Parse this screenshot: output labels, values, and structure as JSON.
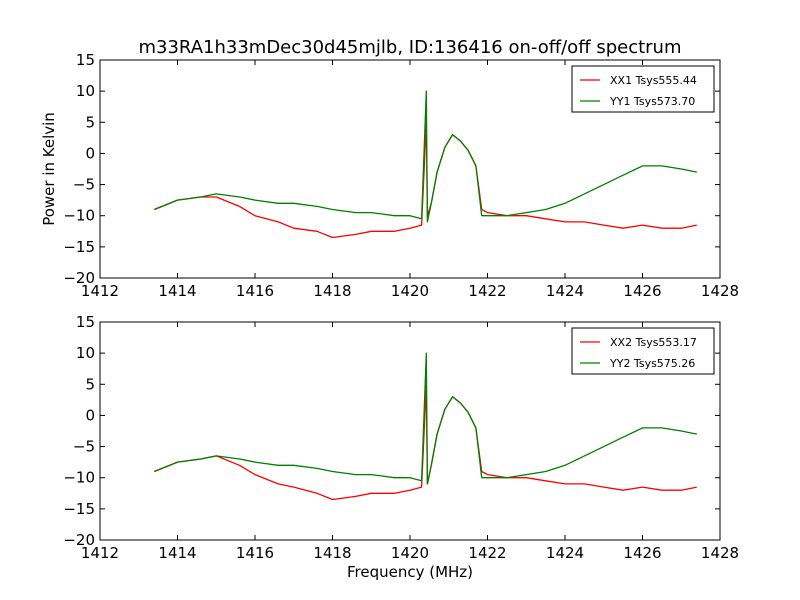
{
  "figure": {
    "title": "m33RA1h33mDec30d45mjlb, ID:136416 on-off/off spectrum",
    "ylabel": "Power in Kelvin",
    "xlabel": "Frequency (MHz)"
  },
  "chart_data": [
    {
      "type": "line",
      "title": "m33RA1h33mDec30d45mjlb, ID:136416 on-off/off spectrum",
      "xlabel": "",
      "ylabel": "Power in Kelvin",
      "xlim": [
        1412,
        1428
      ],
      "ylim": [
        -20,
        15
      ],
      "xticks": [
        "1412",
        "1414",
        "1416",
        "1418",
        "1420",
        "1422",
        "1424",
        "1426",
        "1428"
      ],
      "yticks": [
        "15",
        "10",
        "5",
        "0",
        "−5",
        "−10",
        "−15",
        "−20"
      ],
      "grid": false,
      "legend": "top-right",
      "series": [
        {
          "name": "XX1 Tsys555.44",
          "color": "#ff0000",
          "x": [
            1413.4,
            1414.0,
            1414.6,
            1415.0,
            1415.6,
            1416.0,
            1416.6,
            1417.0,
            1417.6,
            1418.0,
            1418.6,
            1419.0,
            1419.6,
            1420.0,
            1420.3,
            1420.42,
            1420.45,
            1420.55,
            1420.7,
            1420.9,
            1421.1,
            1421.3,
            1421.5,
            1421.7,
            1421.85,
            1422.0,
            1422.5,
            1423.0,
            1423.5,
            1424.0,
            1424.5,
            1425.0,
            1425.5,
            1426.0,
            1426.5,
            1427.0,
            1427.4
          ],
          "y": [
            -9,
            -7.5,
            -7,
            -7,
            -8.5,
            -10,
            -11,
            -12,
            -12.5,
            -13.5,
            -13,
            -12.5,
            -12.5,
            -12,
            -11.5,
            5,
            -10,
            -8,
            -3,
            1,
            3,
            2,
            0.5,
            -2,
            -9,
            -9.5,
            -10,
            -10,
            -10.5,
            -11,
            -11,
            -11.5,
            -12,
            -11.5,
            -12,
            -12,
            -11.5
          ]
        },
        {
          "name": "YY1 Tsys573.70",
          "color": "#008000",
          "x": [
            1413.4,
            1414.0,
            1414.6,
            1415.0,
            1415.6,
            1416.0,
            1416.6,
            1417.0,
            1417.6,
            1418.0,
            1418.6,
            1419.0,
            1419.6,
            1420.0,
            1420.3,
            1420.42,
            1420.45,
            1420.55,
            1420.7,
            1420.9,
            1421.1,
            1421.3,
            1421.5,
            1421.7,
            1421.85,
            1422.0,
            1422.5,
            1423.0,
            1423.5,
            1424.0,
            1424.5,
            1425.0,
            1425.5,
            1426.0,
            1426.5,
            1427.0,
            1427.4
          ],
          "y": [
            -9,
            -7.5,
            -7,
            -6.5,
            -7,
            -7.5,
            -8,
            -8,
            -8.5,
            -9,
            -9.5,
            -9.5,
            -10,
            -10,
            -10.5,
            10,
            -11,
            -8,
            -3,
            1,
            3,
            2,
            0.5,
            -2,
            -10,
            -10,
            -10,
            -9.5,
            -9,
            -8,
            -6.5,
            -5,
            -3.5,
            -2,
            -2,
            -2.5,
            -3
          ]
        }
      ]
    },
    {
      "type": "line",
      "title": "",
      "xlabel": "Frequency (MHz)",
      "ylabel": "",
      "xlim": [
        1412,
        1428
      ],
      "ylim": [
        -20,
        15
      ],
      "xticks": [
        "1412",
        "1414",
        "1416",
        "1418",
        "1420",
        "1422",
        "1424",
        "1426",
        "1428"
      ],
      "yticks": [
        "15",
        "10",
        "5",
        "0",
        "−5",
        "−10",
        "−15",
        "−20"
      ],
      "grid": false,
      "legend": "top-right",
      "series": [
        {
          "name": "XX2 Tsys553.17",
          "color": "#ff0000",
          "x": [
            1413.4,
            1414.0,
            1414.6,
            1415.0,
            1415.6,
            1416.0,
            1416.6,
            1417.0,
            1417.6,
            1418.0,
            1418.6,
            1419.0,
            1419.6,
            1420.0,
            1420.3,
            1420.42,
            1420.45,
            1420.55,
            1420.7,
            1420.9,
            1421.1,
            1421.3,
            1421.5,
            1421.7,
            1421.85,
            1422.0,
            1422.5,
            1423.0,
            1423.5,
            1424.0,
            1424.5,
            1425.0,
            1425.5,
            1426.0,
            1426.5,
            1427.0,
            1427.4
          ],
          "y": [
            -9,
            -7.5,
            -7,
            -6.5,
            -8,
            -9.5,
            -11,
            -11.5,
            -12.5,
            -13.5,
            -13,
            -12.5,
            -12.5,
            -12,
            -11.5,
            5,
            -11,
            -8,
            -3,
            1,
            3,
            2,
            0.5,
            -2,
            -9,
            -9.5,
            -10,
            -10,
            -10.5,
            -11,
            -11,
            -11.5,
            -12,
            -11.5,
            -12,
            -12,
            -11.5
          ]
        },
        {
          "name": "YY2 Tsys575.26",
          "color": "#008000",
          "x": [
            1413.4,
            1414.0,
            1414.6,
            1415.0,
            1415.6,
            1416.0,
            1416.6,
            1417.0,
            1417.6,
            1418.0,
            1418.6,
            1419.0,
            1419.6,
            1420.0,
            1420.3,
            1420.42,
            1420.45,
            1420.55,
            1420.7,
            1420.9,
            1421.1,
            1421.3,
            1421.5,
            1421.7,
            1421.85,
            1422.0,
            1422.5,
            1423.0,
            1423.5,
            1424.0,
            1424.5,
            1425.0,
            1425.5,
            1426.0,
            1426.5,
            1427.0,
            1427.4
          ],
          "y": [
            -9,
            -7.5,
            -7,
            -6.5,
            -7,
            -7.5,
            -8,
            -8,
            -8.5,
            -9,
            -9.5,
            -9.5,
            -10,
            -10,
            -10.5,
            10,
            -11,
            -8,
            -3,
            1,
            3,
            2,
            0.5,
            -2,
            -10,
            -10,
            -10,
            -9.5,
            -9,
            -8,
            -6.5,
            -5,
            -3.5,
            -2,
            -2,
            -2.5,
            -3
          ]
        }
      ]
    }
  ]
}
